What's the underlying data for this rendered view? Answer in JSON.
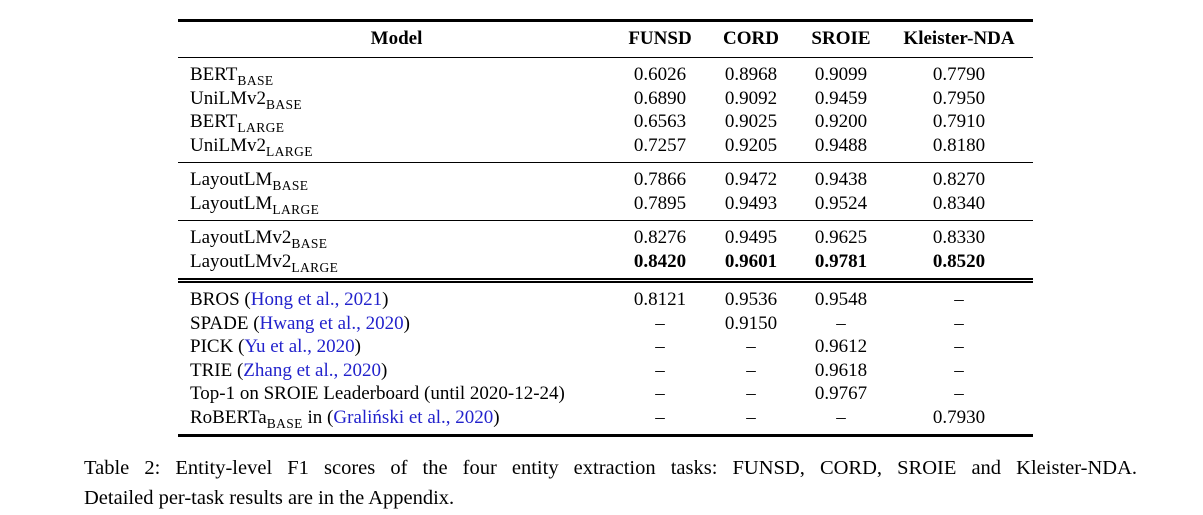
{
  "colors": {
    "background": "#FFFFFF",
    "text": "#000000",
    "citation_blue": "#2222CC",
    "rule_black": "#000000"
  },
  "table": {
    "columns": [
      "Model",
      "FUNSD",
      "CORD",
      "SROIE",
      "Kleister-NDA"
    ],
    "sections": [
      {
        "rows": [
          {
            "model": [
              {
                "t": "BERT"
              },
              {
                "sub": "BASE"
              }
            ],
            "values": [
              "0.6026",
              "0.8968",
              "0.9099",
              "0.7790"
            ],
            "bold": false
          },
          {
            "model": [
              {
                "t": "UniLMv2"
              },
              {
                "sub": "BASE"
              }
            ],
            "values": [
              "0.6890",
              "0.9092",
              "0.9459",
              "0.7950"
            ],
            "bold": false
          },
          {
            "model": [
              {
                "t": "BERT"
              },
              {
                "sub": "LARGE"
              }
            ],
            "values": [
              "0.6563",
              "0.9025",
              "0.9200",
              "0.7910"
            ],
            "bold": false
          },
          {
            "model": [
              {
                "t": "UniLMv2"
              },
              {
                "sub": "LARGE"
              }
            ],
            "values": [
              "0.7257",
              "0.9205",
              "0.9488",
              "0.8180"
            ],
            "bold": false
          }
        ]
      },
      {
        "rows": [
          {
            "model": [
              {
                "t": "LayoutLM"
              },
              {
                "sub": "BASE"
              }
            ],
            "values": [
              "0.7866",
              "0.9472",
              "0.9438",
              "0.8270"
            ],
            "bold": false
          },
          {
            "model": [
              {
                "t": "LayoutLM"
              },
              {
                "sub": "LARGE"
              }
            ],
            "values": [
              "0.7895",
              "0.9493",
              "0.9524",
              "0.8340"
            ],
            "bold": false
          }
        ]
      },
      {
        "rows": [
          {
            "model": [
              {
                "t": "LayoutLMv2"
              },
              {
                "sub": "BASE"
              }
            ],
            "values": [
              "0.8276",
              "0.9495",
              "0.9625",
              "0.8330"
            ],
            "bold": false
          },
          {
            "model": [
              {
                "t": "LayoutLMv2"
              },
              {
                "sub": "LARGE"
              }
            ],
            "values": [
              "0.8420",
              "0.9601",
              "0.9781",
              "0.8520"
            ],
            "bold": true
          }
        ]
      },
      {
        "rows": [
          {
            "model": [
              {
                "t": "BROS ("
              },
              {
                "cite": "Hong et al., 2021"
              },
              {
                "t": ")"
              }
            ],
            "values": [
              "0.8121",
              "0.9536",
              "0.9548",
              "–"
            ],
            "bold": false
          },
          {
            "model": [
              {
                "t": "SPADE ("
              },
              {
                "cite": "Hwang et al., 2020"
              },
              {
                "t": ")"
              }
            ],
            "values": [
              "–",
              "0.9150",
              "–",
              "–"
            ],
            "bold": false
          },
          {
            "model": [
              {
                "t": "PICK ("
              },
              {
                "cite": "Yu et al., 2020"
              },
              {
                "t": ")"
              }
            ],
            "values": [
              "–",
              "–",
              "0.9612",
              "–"
            ],
            "bold": false
          },
          {
            "model": [
              {
                "t": "TRIE ("
              },
              {
                "cite": "Zhang et al., 2020"
              },
              {
                "t": ")"
              }
            ],
            "values": [
              "–",
              "–",
              "0.9618",
              "–"
            ],
            "bold": false
          },
          {
            "model": [
              {
                "t": "Top-1 on SROIE Leaderboard (until 2020-12-24)"
              }
            ],
            "values": [
              "–",
              "–",
              "0.9767",
              "–"
            ],
            "bold": false
          },
          {
            "model": [
              {
                "t": "RoBERTa"
              },
              {
                "sub": "BASE"
              },
              {
                "t": " in ("
              },
              {
                "cite": "Graliński et al., 2020"
              },
              {
                "t": ")"
              }
            ],
            "values": [
              "–",
              "–",
              "–",
              "0.7930"
            ],
            "bold": false
          }
        ]
      }
    ]
  },
  "caption": {
    "line1": "Table 2: Entity-level F1 scores of the four entity extraction tasks: FUNSD, CORD, SROIE and Kleister-NDA.",
    "line2": "Detailed per-task results are in the Appendix."
  }
}
